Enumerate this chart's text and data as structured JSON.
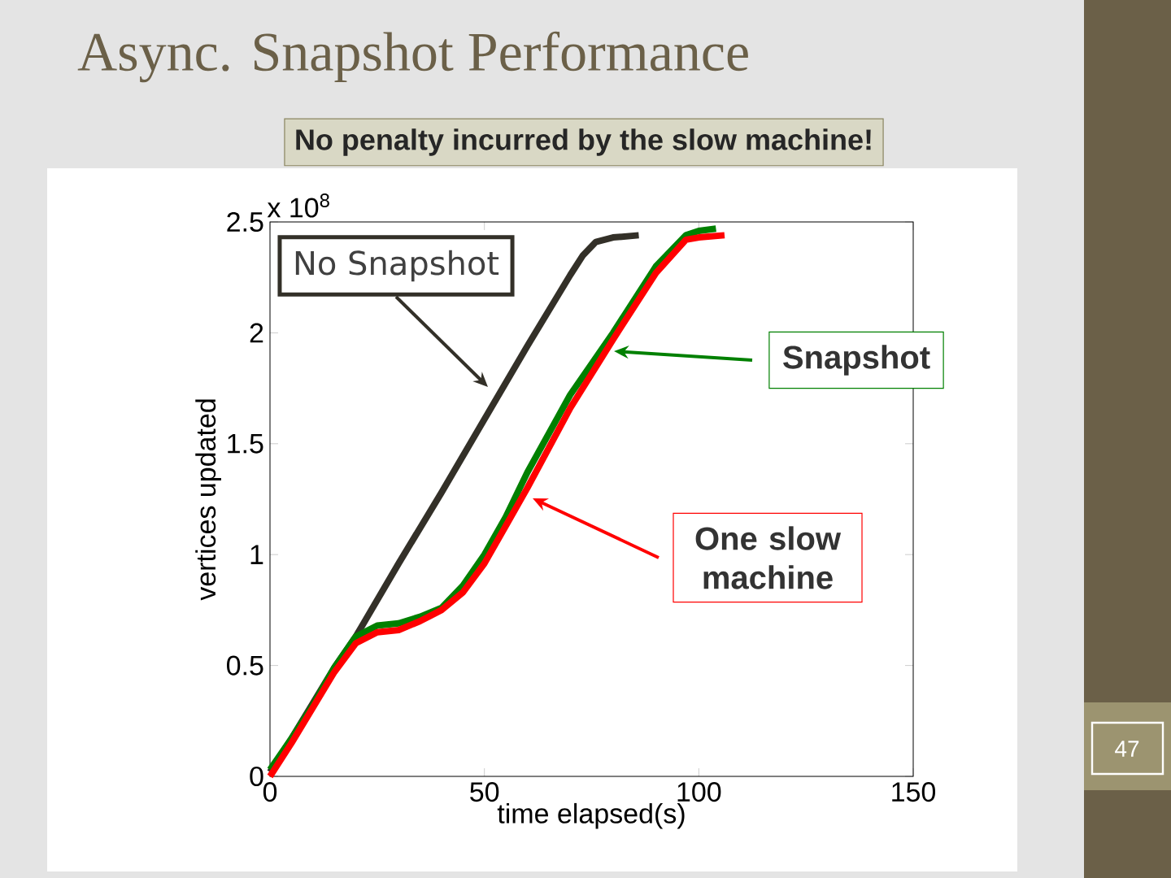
{
  "chart_data": {
    "type": "line",
    "title": "Async. Snapshot Performance",
    "xlabel": "time elapsed(s)",
    "ylabel": "vertices updated",
    "annotations": [
      "x 10$^{8}$",
      "No penalty incurred by the slow machine!",
      "47"
    ],
    "xlim": [
      0,
      150
    ],
    "ylim": [
      0,
      2.5
    ],
    "xticks": [
      0,
      50,
      100,
      150
    ],
    "yticks": [
      0,
      0.5,
      1,
      1.5,
      2,
      2.5
    ],
    "grid": false,
    "legend": "right",
    "marker": "none",
    "line_style": "solid",
    "series": [
      {
        "name": "No Snapshot",
        "color": "#333028",
        "x": [
          0,
          5,
          10,
          15,
          20,
          30,
          40,
          50,
          60,
          70,
          73,
          76,
          80,
          86
        ],
        "values": [
          0.02,
          0.17,
          0.33,
          0.49,
          0.63,
          0.96,
          1.28,
          1.61,
          1.94,
          2.26,
          2.35,
          2.41,
          2.43,
          2.44
        ]
      },
      {
        "name": "Snapshot",
        "color": "#008000",
        "x": [
          0,
          5,
          10,
          15,
          20,
          25,
          30,
          35,
          40,
          45,
          50,
          55,
          60,
          70,
          80,
          90,
          97,
          100,
          104
        ],
        "values": [
          0.03,
          0.17,
          0.32,
          0.49,
          0.63,
          0.68,
          0.69,
          0.72,
          0.76,
          0.86,
          1.0,
          1.17,
          1.37,
          1.72,
          2.0,
          2.3,
          2.44,
          2.46,
          2.47
        ]
      },
      {
        "name": "One slow machine",
        "color": "#ff0000",
        "x": [
          0,
          5,
          10,
          15,
          20,
          25,
          30,
          35,
          40,
          45,
          50,
          55,
          60,
          70,
          80,
          90,
          97,
          100,
          106
        ],
        "values": [
          0.0,
          0.15,
          0.31,
          0.47,
          0.6,
          0.65,
          0.66,
          0.7,
          0.75,
          0.83,
          0.96,
          1.13,
          1.3,
          1.66,
          1.97,
          2.27,
          2.42,
          2.43,
          2.44
        ]
      }
    ]
  }
}
